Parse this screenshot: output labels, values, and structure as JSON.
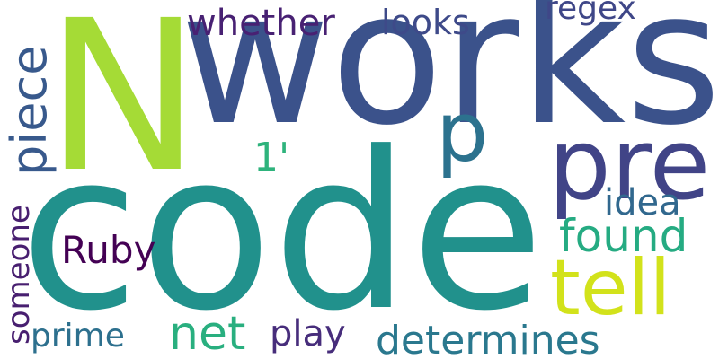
{
  "words": {
    "code": "code",
    "n": "N",
    "works": "works",
    "pre": "pre",
    "p": "p",
    "tell": "tell",
    "found": "found",
    "idea": "idea",
    "net": "net",
    "determines": "determines",
    "play": "play",
    "prime": "prime",
    "ruby": "Ruby",
    "one_quote": "1'",
    "whether": "whether",
    "looks": "looks",
    "regex": "regex",
    "piece": "piece",
    "someone": "someone"
  },
  "colors": {
    "background": "#ffffff",
    "palette": "viridis"
  }
}
